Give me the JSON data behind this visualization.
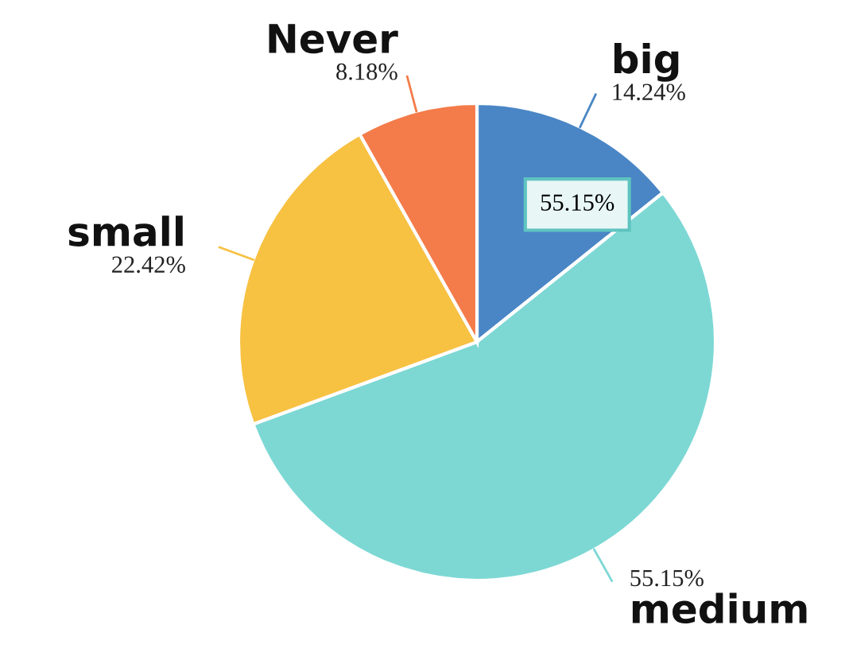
{
  "chart_data": {
    "type": "pie",
    "categories": [
      "big",
      "medium",
      "small",
      "Never"
    ],
    "values": [
      14.24,
      55.15,
      22.42,
      8.18
    ],
    "colors": [
      "#4a86c5",
      "#7dd8d4",
      "#f7c142",
      "#f47b4a"
    ],
    "value_labels": [
      "14.24%",
      "55.15%",
      "22.42%",
      "8.18%"
    ],
    "annotations": [
      "55.15%"
    ],
    "legend": false
  }
}
